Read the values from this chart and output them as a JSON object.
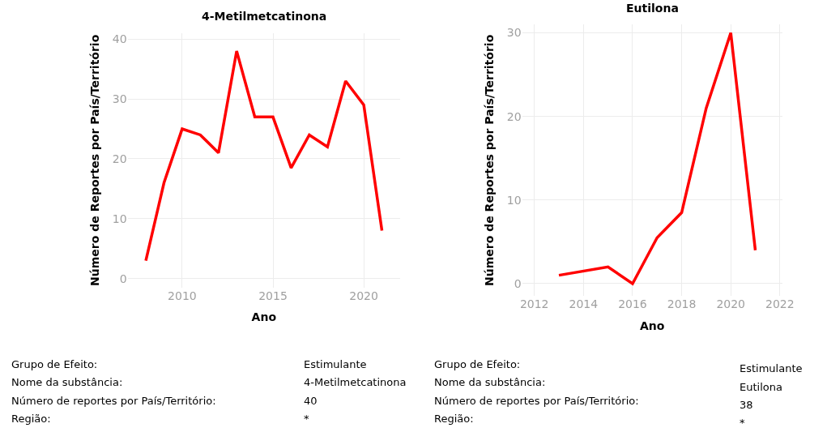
{
  "chart_data": [
    {
      "type": "line",
      "title": "4-Metilmetcatinona",
      "xlabel": "Ano",
      "ylabel": "Número de Reportes por País/Território",
      "x": [
        2008,
        2009,
        2010,
        2011,
        2012,
        2013,
        2014,
        2015,
        2016,
        2017,
        2018,
        2019,
        2020,
        2021
      ],
      "series": [
        {
          "color": "#ff0000",
          "values": [
            3,
            16,
            25,
            24,
            21,
            38,
            27,
            27,
            18.5,
            24,
            22,
            33,
            29,
            8
          ]
        }
      ],
      "xlim": [
        2007,
        2022
      ],
      "xticks": [
        2010,
        2015,
        2020
      ],
      "ylim": [
        -1.5,
        41
      ],
      "yticks": [
        0,
        10,
        20,
        30,
        40
      ],
      "grid": true,
      "annotations": [
        "Grupo de Efeito:",
        "Estimulante",
        "Nome da substância:",
        "4-Metilmetcatinona",
        "Número de reportes por País/Território:",
        "40",
        "Região:",
        "*"
      ]
    },
    {
      "type": "line",
      "title": "Eutilona",
      "xlabel": "Ano",
      "ylabel": "Número de Reportes por País/Território",
      "x": [
        2013,
        2015,
        2016,
        2017,
        2018,
        2019,
        2020,
        2021
      ],
      "series": [
        {
          "color": "#ff0000",
          "values": [
            1,
            2,
            0,
            5.5,
            8.5,
            21,
            30,
            4
          ]
        }
      ],
      "xlim": [
        2011.5,
        2022.1
      ],
      "xticks": [
        2012,
        2014,
        2016,
        2018,
        2020,
        2022
      ],
      "ylim": [
        -1.5,
        31
      ],
      "yticks": [
        0,
        10,
        20,
        30
      ],
      "grid": true,
      "annotations": [
        "Grupo de Efeito:",
        "Estimulante",
        "Nome da substância:",
        "Eutilona",
        "Número de reportes por País/Território:",
        "38",
        "Região:",
        "*"
      ]
    }
  ]
}
